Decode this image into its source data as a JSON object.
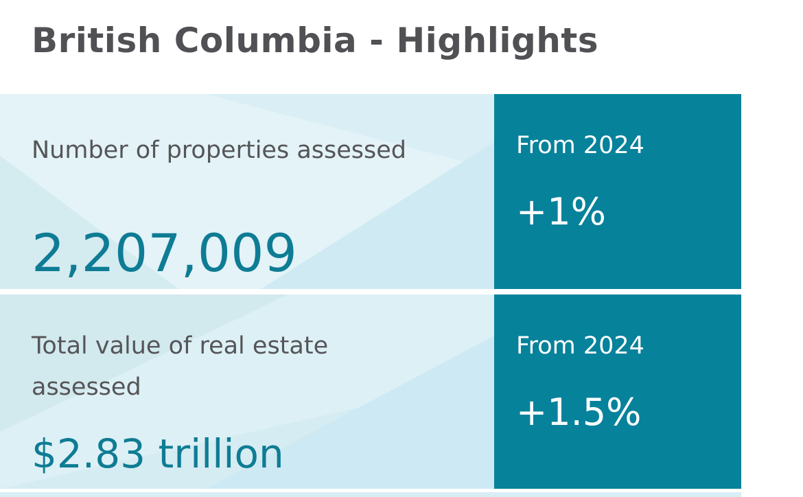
{
  "header": {
    "title": "British Columbia - Highlights"
  },
  "highlights": [
    {
      "label": "Number of properties assessed",
      "value": "2,207,009",
      "comparison_label": "From 2024",
      "change": "+1%"
    },
    {
      "label": "Total value of real estate assessed",
      "value": "$2.83 trillion",
      "comparison_label": "From 2024",
      "change": "+1.5%"
    }
  ],
  "colors": {
    "title_text": "#515155",
    "accent_panel": "#07829b",
    "value_text": "#0e7c94",
    "card_background": "#daeff5"
  }
}
